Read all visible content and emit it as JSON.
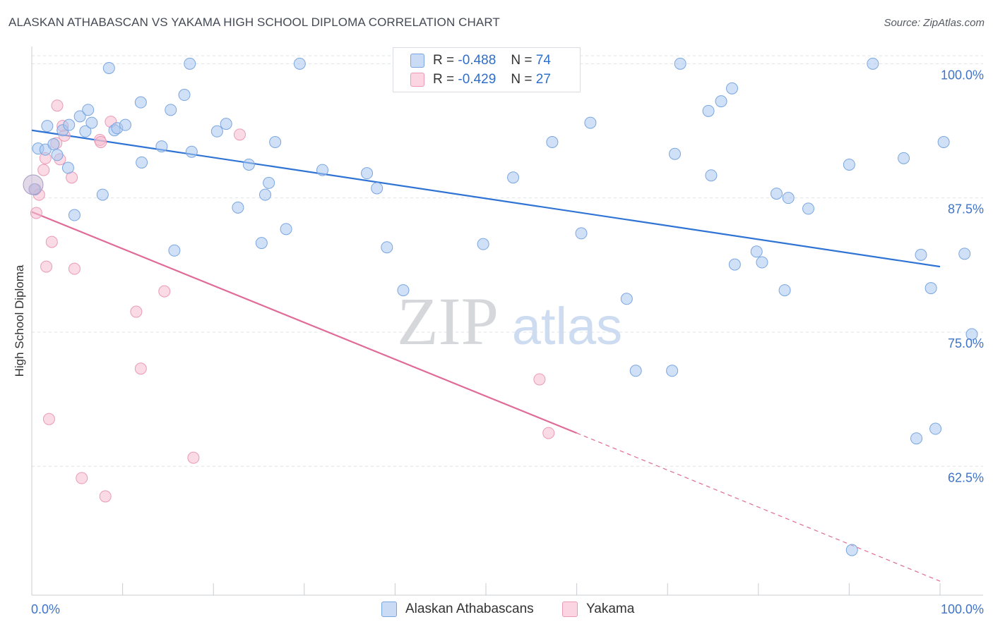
{
  "header": {
    "title": "ALASKAN ATHABASCAN VS YAKAMA HIGH SCHOOL DIPLOMA CORRELATION CHART",
    "source": "Source: ZipAtlas.com"
  },
  "legend_top": {
    "rows": [
      {
        "r_label": "R =",
        "r_value": "-0.488",
        "n_label": "N =",
        "n_value": "74",
        "color": "#a9c6ee"
      },
      {
        "r_label": "R =",
        "r_value": "-0.429",
        "n_label": "N =",
        "n_value": "27",
        "color": "#f6bdd0"
      }
    ]
  },
  "legend_bottom": [
    {
      "label": "Alaskan Athabascans",
      "color": "#a9c6ee"
    },
    {
      "label": "Yakama",
      "color": "#f6bdd0"
    }
  ],
  "watermark": {
    "zip": "ZIP",
    "atlas": "atlas"
  },
  "chart_data": {
    "type": "scatter",
    "title": "ALASKAN ATHABASCAN VS YAKAMA HIGH SCHOOL DIPLOMA CORRELATION CHART",
    "xlabel": "",
    "ylabel": "High School Diploma",
    "xlim": [
      0,
      100
    ],
    "ylim": [
      50.5,
      101.6
    ],
    "x_tick_labels": [
      "0.0%",
      "100.0%"
    ],
    "y_ticks": [
      100.0,
      87.5,
      75.0,
      62.5
    ],
    "y_tick_labels": [
      "100.0%",
      "87.5%",
      "75.0%",
      "62.5%"
    ],
    "grid": true,
    "series": [
      {
        "name": "Alaskan Athabascans",
        "color": "#a9c6ee",
        "edge": "#7aa6e0",
        "line_color": "#2f73d4",
        "trend": {
          "x": [
            0,
            100
          ],
          "y": [
            93.8,
            81.1
          ]
        },
        "points": [
          [
            0.3,
            88.3
          ],
          [
            0.7,
            92.1
          ],
          [
            1.5,
            92.0
          ],
          [
            1.7,
            94.2
          ],
          [
            2.4,
            92.5
          ],
          [
            2.8,
            91.5
          ],
          [
            3.4,
            93.8
          ],
          [
            4.0,
            90.3
          ],
          [
            4.1,
            94.3
          ],
          [
            4.7,
            85.9
          ],
          [
            5.3,
            95.1
          ],
          [
            5.9,
            93.7
          ],
          [
            6.2,
            95.7
          ],
          [
            6.6,
            94.5
          ],
          [
            7.8,
            87.8
          ],
          [
            8.5,
            99.6
          ],
          [
            9.1,
            93.8
          ],
          [
            9.4,
            94.0
          ],
          [
            10.3,
            94.3
          ],
          [
            12.0,
            96.4
          ],
          [
            12.1,
            90.8
          ],
          [
            14.3,
            92.3
          ],
          [
            15.3,
            95.7
          ],
          [
            15.7,
            82.6
          ],
          [
            16.8,
            97.1
          ],
          [
            17.4,
            100.0
          ],
          [
            17.6,
            91.8
          ],
          [
            20.4,
            93.7
          ],
          [
            21.4,
            94.4
          ],
          [
            22.7,
            86.6
          ],
          [
            23.9,
            90.6
          ],
          [
            25.3,
            83.3
          ],
          [
            25.7,
            87.8
          ],
          [
            26.1,
            88.9
          ],
          [
            26.8,
            92.7
          ],
          [
            28.0,
            84.6
          ],
          [
            29.5,
            100.0
          ],
          [
            32.0,
            90.1
          ],
          [
            36.9,
            89.8
          ],
          [
            38.0,
            88.4
          ],
          [
            39.1,
            82.9
          ],
          [
            40.9,
            78.9
          ],
          [
            49.7,
            83.2
          ],
          [
            53.0,
            89.4
          ],
          [
            57.3,
            92.7
          ],
          [
            60.5,
            84.2
          ],
          [
            61.5,
            94.5
          ],
          [
            65.5,
            78.1
          ],
          [
            66.5,
            71.4
          ],
          [
            70.5,
            71.4
          ],
          [
            70.8,
            91.6
          ],
          [
            71.4,
            100.0
          ],
          [
            74.5,
            95.6
          ],
          [
            74.8,
            89.6
          ],
          [
            75.9,
            96.5
          ],
          [
            77.1,
            97.7
          ],
          [
            77.4,
            81.3
          ],
          [
            79.8,
            82.5
          ],
          [
            80.4,
            81.5
          ],
          [
            82.0,
            87.9
          ],
          [
            82.9,
            78.9
          ],
          [
            83.3,
            87.5
          ],
          [
            85.5,
            86.5
          ],
          [
            90.0,
            90.6
          ],
          [
            92.6,
            100.0
          ],
          [
            96.0,
            91.2
          ],
          [
            97.4,
            65.1
          ],
          [
            97.9,
            82.2
          ],
          [
            99.0,
            79.1
          ],
          [
            99.5,
            66.0
          ],
          [
            100.4,
            92.7
          ],
          [
            102.7,
            82.3
          ],
          [
            103.5,
            74.8
          ],
          [
            90.3,
            54.7
          ]
        ]
      },
      {
        "name": "Yakama",
        "color": "#f6bdd0",
        "edge": "#ea9ab6",
        "line_color": "#e06b98",
        "trend": {
          "x": [
            0,
            60
          ],
          "y": [
            86.2,
            65.6
          ]
        },
        "trend_dashed": {
          "x": [
            60,
            100
          ],
          "y": [
            65.6,
            51.8
          ]
        },
        "points": [
          [
            0.4,
            88.3
          ],
          [
            0.5,
            86.1
          ],
          [
            0.8,
            87.8
          ],
          [
            1.3,
            90.1
          ],
          [
            1.5,
            91.2
          ],
          [
            1.6,
            81.1
          ],
          [
            1.9,
            66.9
          ],
          [
            2.2,
            83.4
          ],
          [
            2.7,
            92.6
          ],
          [
            2.8,
            96.1
          ],
          [
            3.1,
            91.1
          ],
          [
            3.4,
            94.2
          ],
          [
            3.6,
            93.3
          ],
          [
            4.4,
            89.4
          ],
          [
            4.7,
            80.9
          ],
          [
            5.5,
            61.4
          ],
          [
            7.5,
            92.9
          ],
          [
            7.6,
            92.7
          ],
          [
            8.1,
            59.7
          ],
          [
            8.7,
            94.6
          ],
          [
            11.5,
            76.9
          ],
          [
            12.0,
            71.6
          ],
          [
            14.6,
            78.8
          ],
          [
            17.8,
            63.3
          ],
          [
            22.9,
            93.4
          ],
          [
            55.9,
            70.6
          ],
          [
            56.9,
            65.6
          ]
        ]
      }
    ]
  }
}
